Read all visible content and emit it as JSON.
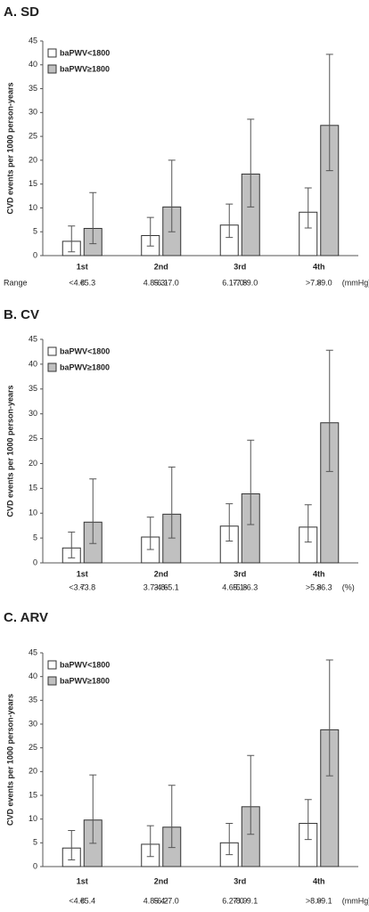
{
  "chart_data": [
    {
      "type": "bar",
      "title": "A. SD",
      "ylabel": "CVD events per 1000 person-years",
      "categories": [
        "1st",
        "2nd",
        "3rd",
        "4th"
      ],
      "range_title": "Range",
      "unit": "(mmHg)",
      "ylim": [
        0,
        45
      ],
      "yticks": [
        0,
        5,
        10,
        15,
        20,
        25,
        30,
        35,
        40,
        45
      ],
      "legend": "upper-left",
      "series": [
        {
          "name": "baPWV<1800",
          "color": "#ffffff",
          "values": [
            3.0,
            4.2,
            6.4,
            9.1
          ],
          "ci_low": [
            0.8,
            2.0,
            3.8,
            5.8
          ],
          "ci_high": [
            6.2,
            8.0,
            10.8,
            14.2
          ],
          "range_labels": [
            "<4.8",
            "4.8-6.1",
            "6.1-7.8",
            ">7.8"
          ]
        },
        {
          "name": "baPWV≥1800",
          "color": "#c0c0c0",
          "values": [
            5.7,
            10.2,
            17.1,
            27.3
          ],
          "ci_low": [
            2.5,
            5.0,
            10.2,
            17.8
          ],
          "ci_high": [
            13.2,
            20.0,
            28.6,
            42.2
          ],
          "range_labels": [
            "<5.3",
            "5.3-7.0",
            "7.0-9.0",
            ">9.0"
          ]
        }
      ]
    },
    {
      "type": "bar",
      "title": "B. CV",
      "ylabel": "CVD events per 1000 person-years",
      "categories": [
        "1st",
        "2nd",
        "3rd",
        "4th"
      ],
      "unit": "(%)",
      "ylim": [
        0,
        45
      ],
      "yticks": [
        0,
        5,
        10,
        15,
        20,
        25,
        30,
        35,
        40,
        45
      ],
      "legend": "upper-left",
      "series": [
        {
          "name": "baPWV<1800",
          "color": "#ffffff",
          "values": [
            3.0,
            5.2,
            7.4,
            7.2
          ],
          "ci_low": [
            1.0,
            2.7,
            4.4,
            4.2
          ],
          "ci_high": [
            6.2,
            9.2,
            11.9,
            11.7
          ],
          "range_labels": [
            "<3.7",
            "3.7-4.6",
            "4.6-5.8",
            ">5.8"
          ]
        },
        {
          "name": "baPWV≥1800",
          "color": "#c0c0c0",
          "values": [
            8.2,
            9.8,
            13.9,
            28.2
          ],
          "ci_low": [
            3.9,
            5.0,
            7.7,
            18.4
          ],
          "ci_high": [
            16.9,
            19.3,
            24.7,
            42.8
          ],
          "range_labels": [
            "<3.8",
            "3.8-5.1",
            "5.1-6.3",
            ">6.3"
          ]
        }
      ]
    },
    {
      "type": "bar",
      "title": "C. ARV",
      "ylabel": "CVD events per 1000 person-years",
      "categories": [
        "1st",
        "2nd",
        "3rd",
        "4th"
      ],
      "unit": "(mmHg)",
      "ylim": [
        0,
        45
      ],
      "yticks": [
        0,
        5,
        10,
        15,
        20,
        25,
        30,
        35,
        40,
        45
      ],
      "legend": "upper-left",
      "series": [
        {
          "name": "baPWV<1800",
          "color": "#ffffff",
          "values": [
            3.9,
            4.7,
            5.0,
            9.1
          ],
          "ci_low": [
            1.4,
            2.1,
            2.5,
            5.7
          ],
          "ci_high": [
            7.6,
            8.6,
            9.1,
            14.1
          ],
          "range_labels": [
            "<4.8",
            "4.8-6.2",
            "6.2-8.0",
            ">8.0"
          ]
        },
        {
          "name": "baPWV≥1800",
          "color": "#c0c0c0",
          "values": [
            9.8,
            8.3,
            12.6,
            28.8
          ],
          "ci_low": [
            4.9,
            4.0,
            6.8,
            19.1
          ],
          "ci_high": [
            19.3,
            17.1,
            23.4,
            43.5
          ],
          "range_labels": [
            "<5.4",
            "5.4-7.0",
            "7.0-9.1",
            ">9.1"
          ]
        }
      ]
    }
  ]
}
